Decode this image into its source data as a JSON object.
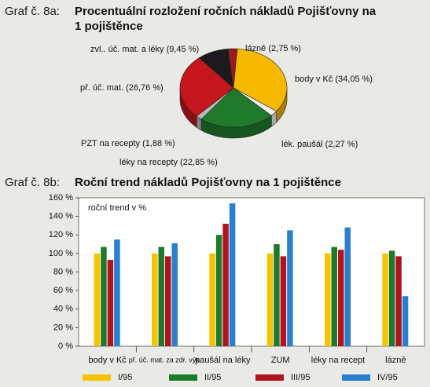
{
  "chart_data": [
    {
      "type": "pie",
      "figure_label": "Graf č. 8a:",
      "title": "Procentuální rozložení ročních nákladů Pojišťovny na 1 pojištěnce",
      "labels": [
        "body v Kč",
        "lék. paušál",
        "léky na recepty",
        "PZT na recepty",
        "př. úč. mat.",
        "zvl.. úč. mat. a léky",
        "lázně"
      ],
      "values": [
        34.05,
        2.27,
        22.85,
        1.88,
        26.76,
        9.45,
        2.75
      ],
      "value_labels": [
        "(34,05 %)",
        "(2,27 %)",
        "(22,85 %)",
        "(1,88 %)",
        "(26,76 %)",
        "(9,45 %)",
        "(2,75 %)"
      ],
      "colors": [
        "#f7b800",
        "#f2f2f2",
        "#1f7a2c",
        "#b8b8b8",
        "#c4161c",
        "#1c1a1c",
        "#9a1a22"
      ]
    },
    {
      "type": "bar",
      "figure_label": "Graf č. 8b:",
      "title": "Roční trend nákladů Pojišťovny na 1 pojištěnce",
      "ylabel": "roční trend v %",
      "categories": [
        "body v Kč",
        "př. úč. mat. za zdr. výk.",
        "paušál na léky",
        "ZUM",
        "léky na recept",
        "lázně"
      ],
      "series": [
        {
          "name": "I/95",
          "color": "#f5c400",
          "values": [
            100,
            100,
            100,
            100,
            100,
            100
          ]
        },
        {
          "name": "II/95",
          "color": "#1e7a2a",
          "values": [
            107,
            107,
            120,
            110,
            107,
            103
          ]
        },
        {
          "name": "III/95",
          "color": "#b0141c",
          "values": [
            93,
            97,
            132,
            97,
            104,
            97
          ]
        },
        {
          "name": "IV/95",
          "color": "#2a7fd0",
          "values": [
            115,
            111,
            154,
            125,
            128,
            54
          ]
        }
      ],
      "ylim": [
        0,
        160
      ],
      "yticks": [
        {
          "value": 0,
          "label": "0 %"
        },
        {
          "value": 20,
          "label": "20 %"
        },
        {
          "value": 40,
          "label": "40 %"
        },
        {
          "value": 60,
          "label": "60 %"
        },
        {
          "value": 80,
          "label": "80 %"
        },
        {
          "value": 100,
          "label": "100 %"
        },
        {
          "value": 120,
          "label": "120 %"
        },
        {
          "value": 140,
          "label": "140 %"
        },
        {
          "value": 160,
          "label": "160 %"
        }
      ],
      "grid": false
    }
  ]
}
